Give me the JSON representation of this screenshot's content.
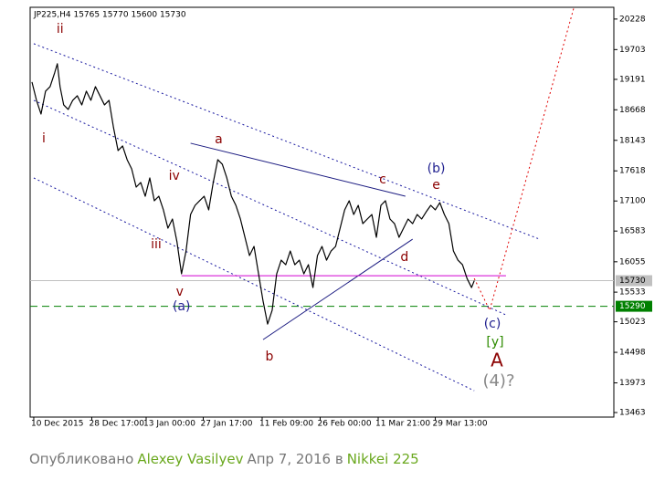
{
  "chart_data": {
    "type": "line",
    "title": "JP225,H4  15765 15770 15600 15730",
    "xlim": [
      -4,
      640
    ],
    "ylim": [
      13385,
      20430
    ],
    "xticks": [
      {
        "value": 0,
        "label": "10 Dec 2015"
      },
      {
        "value": 64,
        "label": "28 Dec 17:00"
      },
      {
        "value": 124,
        "label": "13 Jan 00:00"
      },
      {
        "value": 187,
        "label": "27 Jan 17:00"
      },
      {
        "value": 252,
        "label": "11 Feb 09:00"
      },
      {
        "value": 316,
        "label": "26 Feb 00:00"
      },
      {
        "value": 380,
        "label": "11 Mar 21:00"
      },
      {
        "value": 443,
        "label": "29 Mar 13:00"
      }
    ],
    "yticks": [
      20228,
      19703,
      19191,
      18668,
      18143,
      17618,
      17100,
      16583,
      16055,
      15533,
      15023,
      14498,
      13973,
      13463
    ],
    "series": [
      {
        "name": "JP225",
        "color": "#000000",
        "x": [
          -2,
          3,
          8,
          13,
          18,
          23,
          26,
          29,
          33,
          38,
          43,
          48,
          53,
          58,
          63,
          68,
          73,
          78,
          83,
          88,
          93,
          98,
          103,
          108,
          113,
          118,
          123,
          128,
          133,
          138,
          143,
          148,
          153,
          158,
          163,
          168,
          173,
          178,
          183,
          188,
          193,
          198,
          203,
          208,
          213,
          218,
          223,
          228,
          233,
          238,
          243,
          248,
          253,
          258,
          263,
          268,
          273,
          278,
          283,
          288,
          293,
          298,
          303,
          308,
          313,
          318,
          323,
          328,
          333,
          338,
          343,
          348,
          353,
          358,
          363,
          368,
          373,
          378,
          383,
          388,
          393,
          398,
          403,
          408,
          413,
          418,
          423,
          428,
          433,
          438,
          443,
          448,
          453,
          458,
          463,
          468,
          473,
          478,
          483,
          486
        ],
        "values": [
          19145,
          18831,
          18595,
          18988,
          19066,
          19302,
          19459,
          19066,
          18752,
          18674,
          18831,
          18909,
          18752,
          18988,
          18831,
          19066,
          18909,
          18752,
          18831,
          18360,
          17967,
          18046,
          17810,
          17653,
          17339,
          17418,
          17182,
          17496,
          17104,
          17182,
          16947,
          16633,
          16790,
          16397,
          15848,
          16240,
          16868,
          17025,
          17104,
          17182,
          16947,
          17418,
          17810,
          17732,
          17496,
          17182,
          17025,
          16790,
          16476,
          16162,
          16319,
          15848,
          15377,
          14984,
          15220,
          15848,
          16083,
          16005,
          16240,
          16005,
          16083,
          15848,
          16005,
          15612,
          16162,
          16319,
          16083,
          16240,
          16319,
          16633,
          16947,
          17104,
          16868,
          17025,
          16711,
          16790,
          16868,
          16476,
          17025,
          17104,
          16790,
          16711,
          16476,
          16633,
          16790,
          16711,
          16868,
          16790,
          16915,
          17025,
          16947,
          17072,
          16868,
          16711,
          16240,
          16083,
          16005,
          15769,
          15612,
          15730
        ]
      }
    ],
    "price_lines": [
      {
        "value": 15730,
        "color": "#c0c0c0",
        "label_bg": "#c0c0c0",
        "label_color": "#000000",
        "dash": "solid"
      },
      {
        "value": 15290,
        "color": "#008000",
        "label_bg": "#008000",
        "label_color": "#ffffff",
        "dash": "dashed"
      }
    ],
    "lines": [
      {
        "x": [
          0,
          558
        ],
        "y": [
          19804,
          16444
        ],
        "color": "#1a1aa0",
        "dash": "dotted"
      },
      {
        "x": [
          0,
          521
        ],
        "y": [
          18831,
          15141
        ],
        "color": "#1a1aa0",
        "dash": "dotted"
      },
      {
        "x": [
          0,
          486
        ],
        "y": [
          17496,
          13838
        ],
        "color": "#1a1aa0",
        "dash": "dotted"
      },
      {
        "x": [
          173,
          410
        ],
        "y": [
          18093,
          17182
        ],
        "color": "#1a1a80",
        "dash": "solid"
      },
      {
        "x": [
          253,
          418
        ],
        "y": [
          14717,
          16444
        ],
        "color": "#1a1a80",
        "dash": "solid"
      },
      {
        "x": [
          163,
          521
        ],
        "y": [
          15816,
          15816
        ],
        "color": "#d000d0",
        "dash": "solid"
      },
      {
        "x": [
          486,
          503,
          596
        ],
        "y": [
          15769,
          15220,
          20430
        ],
        "color": "#e00000",
        "dash": "dotted"
      }
    ],
    "annotations": [
      {
        "text": "ii",
        "x": 29,
        "y": 20055,
        "color": "#8b0000"
      },
      {
        "text": "i",
        "x": 11,
        "y": 18171,
        "color": "#8b0000"
      },
      {
        "text": "iii",
        "x": 135,
        "y": 16350,
        "color": "#8b0000"
      },
      {
        "text": "iv",
        "x": 155,
        "y": 17528,
        "color": "#8b0000"
      },
      {
        "text": "v",
        "x": 161,
        "y": 15534,
        "color": "#8b0000"
      },
      {
        "text": "(a)",
        "x": 163,
        "y": 15282,
        "color": "#1f1f8f"
      },
      {
        "text": "a",
        "x": 204,
        "y": 18156,
        "color": "#8b0000"
      },
      {
        "text": "b",
        "x": 260,
        "y": 14419,
        "color": "#8b0000"
      },
      {
        "text": "c",
        "x": 385,
        "y": 17465,
        "color": "#8b0000"
      },
      {
        "text": "d",
        "x": 409,
        "y": 16130,
        "color": "#8b0000"
      },
      {
        "text": "e",
        "x": 444,
        "y": 17371,
        "color": "#8b0000"
      },
      {
        "text": "(b)",
        "x": 444,
        "y": 17653,
        "color": "#1f1f8f"
      },
      {
        "text": "(c)",
        "x": 506,
        "y": 14984,
        "color": "#1f1f8f"
      },
      {
        "text": "[y]",
        "x": 509,
        "y": 14670,
        "color": "#2e8b00"
      },
      {
        "text": "A",
        "x": 511,
        "y": 14340,
        "color": "#8b0000"
      },
      {
        "text": "(4)?",
        "x": 513,
        "y": 13995,
        "color": "#888888"
      }
    ]
  },
  "footer": {
    "prefix": "Опубликовано",
    "author": "Alexey Vasilyev",
    "date": "Апр 7, 2016 в",
    "instrument": "Nikkei 225"
  }
}
